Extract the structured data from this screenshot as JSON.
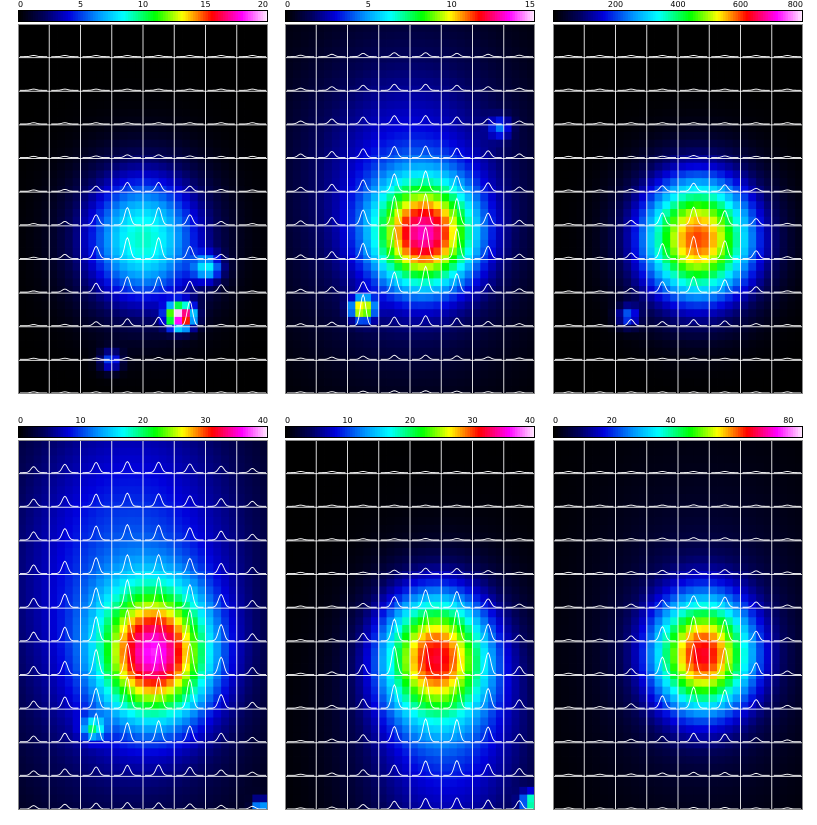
{
  "chart_data": [
    {
      "type": "heatmap",
      "colorbar": {
        "min": 0,
        "max": 20,
        "ticks": [
          0,
          5,
          10,
          15,
          20
        ]
      },
      "grid": {
        "cols": 8,
        "rows": 11
      },
      "blobs": [
        {
          "x": 0.5,
          "y": 0.58,
          "sx": 0.17,
          "sy": 0.13,
          "amp": 9
        },
        {
          "x": 0.65,
          "y": 0.79,
          "sx": 0.035,
          "sy": 0.022,
          "amp": 20
        },
        {
          "x": 0.76,
          "y": 0.66,
          "sx": 0.04,
          "sy": 0.025,
          "amp": 6
        },
        {
          "x": 0.37,
          "y": 0.91,
          "sx": 0.03,
          "sy": 0.02,
          "amp": 5
        }
      ],
      "profile_amp_scale": 1.0
    },
    {
      "type": "heatmap",
      "colorbar": {
        "min": 0,
        "max": 15,
        "ticks": [
          0,
          5,
          10,
          15
        ]
      },
      "grid": {
        "cols": 8,
        "rows": 11
      },
      "blobs": [
        {
          "x": 0.56,
          "y": 0.57,
          "sx": 0.14,
          "sy": 0.1,
          "amp": 10
        },
        {
          "x": 0.5,
          "y": 0.45,
          "sx": 0.3,
          "sy": 0.28,
          "amp": 3.5
        },
        {
          "x": 0.31,
          "y": 0.77,
          "sx": 0.03,
          "sy": 0.02,
          "amp": 10
        },
        {
          "x": 0.86,
          "y": 0.28,
          "sx": 0.03,
          "sy": 0.02,
          "amp": 3
        }
      ],
      "profile_amp_scale": 1.0
    },
    {
      "type": "heatmap",
      "colorbar": {
        "min": 0,
        "max": 800,
        "ticks": [
          200,
          400,
          600,
          800
        ]
      },
      "grid": {
        "cols": 8,
        "rows": 11
      },
      "blobs": [
        {
          "x": 0.58,
          "y": 0.58,
          "sx": 0.16,
          "sy": 0.12,
          "amp": 600
        },
        {
          "x": 0.3,
          "y": 0.79,
          "sx": 0.03,
          "sy": 0.02,
          "amp": 200
        }
      ],
      "profile_amp_scale": 0.6
    },
    {
      "type": "heatmap",
      "colorbar": {
        "min": 0,
        "max": 40,
        "ticks": [
          0,
          10,
          20,
          30,
          40
        ]
      },
      "grid": {
        "cols": 8,
        "rows": 11
      },
      "blobs": [
        {
          "x": 0.55,
          "y": 0.58,
          "sx": 0.15,
          "sy": 0.12,
          "amp": 27
        },
        {
          "x": 0.45,
          "y": 0.4,
          "sx": 0.35,
          "sy": 0.4,
          "amp": 11
        },
        {
          "x": 0.3,
          "y": 0.78,
          "sx": 0.03,
          "sy": 0.02,
          "amp": 12
        },
        {
          "x": 0.97,
          "y": 0.99,
          "sx": 0.02,
          "sy": 0.015,
          "amp": 15
        }
      ],
      "profile_amp_scale": 1.2
    },
    {
      "type": "heatmap",
      "colorbar": {
        "min": 0,
        "max": 40,
        "ticks": [
          0,
          10,
          20,
          30,
          40
        ]
      },
      "grid": {
        "cols": 8,
        "rows": 11
      },
      "blobs": [
        {
          "x": 0.6,
          "y": 0.58,
          "sx": 0.15,
          "sy": 0.12,
          "amp": 26
        },
        {
          "x": 0.65,
          "y": 0.8,
          "sx": 0.25,
          "sy": 0.25,
          "amp": 9
        },
        {
          "x": 0.99,
          "y": 0.98,
          "sx": 0.03,
          "sy": 0.02,
          "amp": 18
        }
      ],
      "profile_amp_scale": 1.2
    },
    {
      "type": "heatmap",
      "colorbar": {
        "min": 0,
        "max": 85,
        "ticks": [
          0,
          20,
          40,
          60,
          80
        ]
      },
      "grid": {
        "cols": 8,
        "rows": 11
      },
      "blobs": [
        {
          "x": 0.6,
          "y": 0.58,
          "sx": 0.14,
          "sy": 0.11,
          "amp": 60
        },
        {
          "x": 0.6,
          "y": 0.55,
          "sx": 0.3,
          "sy": 0.3,
          "amp": 8
        }
      ],
      "profile_amp_scale": 0.8
    }
  ]
}
